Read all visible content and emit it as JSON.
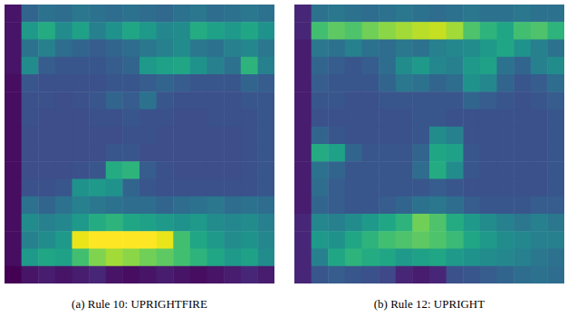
{
  "chart_data": [
    {
      "type": "heatmap",
      "title": "(a) Rule 10: UPRIGHTFIRE",
      "tick_labels": false,
      "values": [
        [
          10,
          35,
          40,
          38,
          42,
          40,
          38,
          40,
          38,
          36,
          40,
          42,
          38,
          40,
          42,
          40
        ],
        [
          10,
          55,
          62,
          50,
          58,
          45,
          52,
          60,
          55,
          48,
          50,
          62,
          58,
          55,
          60,
          52
        ],
        [
          10,
          40,
          45,
          38,
          35,
          32,
          35,
          38,
          42,
          45,
          50,
          42,
          40,
          45,
          48,
          42
        ],
        [
          10,
          50,
          32,
          30,
          30,
          30,
          32,
          35,
          55,
          58,
          60,
          52,
          45,
          40,
          65,
          45
        ],
        [
          8,
          30,
          28,
          28,
          28,
          28,
          30,
          30,
          32,
          35,
          32,
          30,
          30,
          30,
          35,
          32
        ],
        [
          8,
          28,
          28,
          27,
          28,
          30,
          35,
          32,
          40,
          30,
          28,
          28,
          28,
          28,
          30,
          30
        ],
        [
          8,
          28,
          27,
          27,
          27,
          28,
          28,
          30,
          28,
          28,
          27,
          27,
          28,
          28,
          28,
          30
        ],
        [
          8,
          27,
          27,
          27,
          27,
          27,
          27,
          28,
          28,
          27,
          27,
          27,
          27,
          27,
          28,
          30
        ],
        [
          8,
          27,
          27,
          27,
          27,
          27,
          30,
          30,
          27,
          27,
          27,
          27,
          27,
          27,
          28,
          30
        ],
        [
          8,
          27,
          27,
          27,
          28,
          30,
          62,
          65,
          32,
          28,
          27,
          27,
          27,
          27,
          28,
          30
        ],
        [
          8,
          28,
          28,
          30,
          52,
          55,
          52,
          35,
          30,
          28,
          28,
          28,
          28,
          28,
          28,
          30
        ],
        [
          8,
          40,
          35,
          40,
          45,
          42,
          40,
          38,
          38,
          35,
          38,
          40,
          42,
          38,
          40,
          38
        ],
        [
          8,
          50,
          45,
          48,
          55,
          62,
          65,
          60,
          58,
          55,
          52,
          55,
          50,
          48,
          50,
          45
        ],
        [
          8,
          45,
          50,
          55,
          95,
          98,
          98,
          98,
          98,
          95,
          70,
          60,
          55,
          50,
          52,
          48
        ],
        [
          8,
          55,
          60,
          58,
          70,
          80,
          85,
          82,
          78,
          75,
          70,
          65,
          60,
          55,
          58,
          50
        ],
        [
          5,
          10,
          12,
          10,
          12,
          15,
          10,
          8,
          10,
          12,
          10,
          8,
          10,
          12,
          15,
          12
        ]
      ]
    },
    {
      "type": "heatmap",
      "title": "(b) Rule 12: UPRIGHT",
      "tick_labels": false,
      "values": [
        [
          15,
          40,
          42,
          40,
          38,
          40,
          42,
          40,
          38,
          40,
          42,
          40,
          40,
          42,
          40,
          40
        ],
        [
          15,
          70,
          75,
          72,
          78,
          82,
          85,
          88,
          90,
          85,
          72,
          65,
          60,
          70,
          72,
          65
        ],
        [
          12,
          42,
          40,
          45,
          40,
          38,
          42,
          40,
          45,
          48,
          50,
          55,
          60,
          52,
          45,
          40
        ],
        [
          12,
          35,
          32,
          30,
          32,
          38,
          50,
          55,
          48,
          45,
          55,
          58,
          40,
          35,
          45,
          50
        ],
        [
          12,
          32,
          30,
          30,
          30,
          35,
          42,
          40,
          35,
          38,
          52,
          48,
          35,
          30,
          32,
          38
        ],
        [
          12,
          30,
          30,
          28,
          28,
          30,
          30,
          30,
          30,
          30,
          35,
          32,
          30,
          28,
          30,
          32
        ],
        [
          12,
          28,
          28,
          28,
          28,
          28,
          28,
          30,
          30,
          28,
          28,
          28,
          28,
          28,
          28,
          30
        ],
        [
          12,
          35,
          30,
          28,
          28,
          28,
          28,
          30,
          50,
          45,
          28,
          28,
          28,
          28,
          28,
          30
        ],
        [
          12,
          62,
          58,
          35,
          30,
          30,
          30,
          35,
          60,
          58,
          30,
          28,
          28,
          28,
          28,
          30
        ],
        [
          12,
          40,
          35,
          30,
          30,
          30,
          30,
          38,
          62,
          50,
          30,
          28,
          28,
          28,
          28,
          30
        ],
        [
          12,
          38,
          32,
          30,
          30,
          30,
          30,
          30,
          32,
          30,
          28,
          28,
          28,
          28,
          28,
          30
        ],
        [
          12,
          35,
          32,
          30,
          30,
          32,
          35,
          40,
          42,
          38,
          32,
          30,
          30,
          30,
          32,
          32
        ],
        [
          15,
          48,
          45,
          50,
          55,
          60,
          65,
          78,
          72,
          62,
          55,
          50,
          45,
          42,
          45,
          42
        ],
        [
          15,
          55,
          52,
          60,
          65,
          70,
          72,
          75,
          72,
          68,
          60,
          55,
          50,
          48,
          45,
          45
        ],
        [
          15,
          45,
          60,
          65,
          62,
          60,
          55,
          58,
          60,
          55,
          52,
          50,
          48,
          45,
          42,
          40
        ],
        [
          15,
          30,
          32,
          30,
          28,
          25,
          15,
          12,
          15,
          28,
          30,
          32,
          35,
          38,
          40,
          38
        ]
      ]
    }
  ]
}
